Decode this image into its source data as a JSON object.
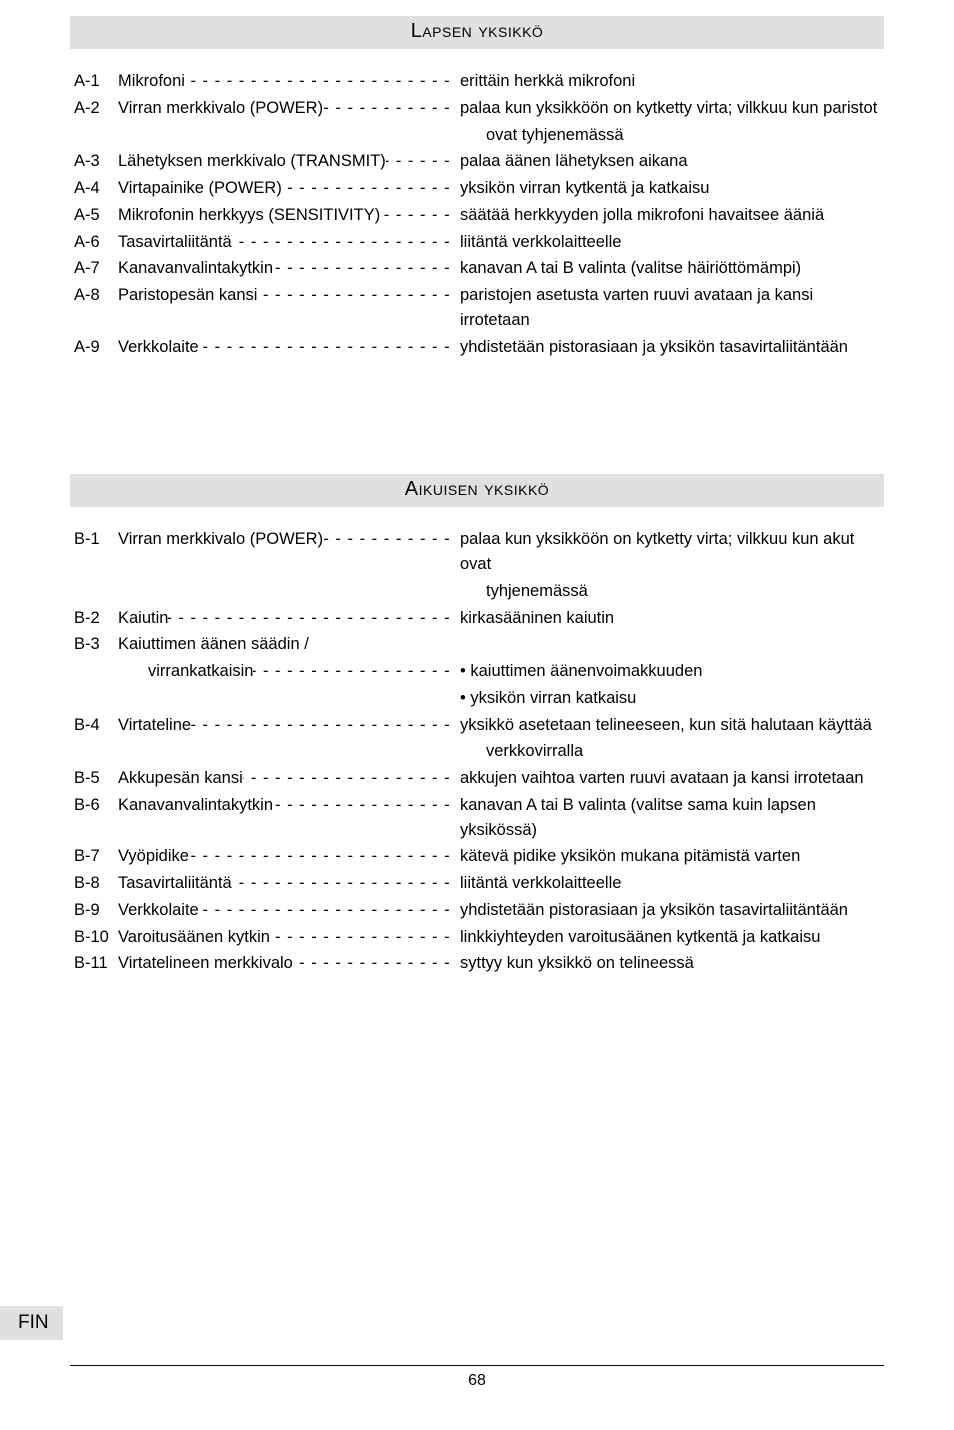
{
  "colors": {
    "page_bg": "#ffffff",
    "heading_bg": "#e0e0e0",
    "text": "#000000",
    "rule": "#000000"
  },
  "fonts": {
    "body_size_pt": 12,
    "heading_size_pt": 15
  },
  "leader_glyph": "- - - - - - - - - - - - - - - - - - - - - - - - - - - - - - - - - - - - - - - - - - - - - - - - - - - - - -",
  "section1": {
    "title": "Lapsen yksikkö",
    "rows": [
      {
        "tag": "A-1",
        "label": "Mikrofoni ",
        "desc": "erittäin herkkä mikrofoni"
      },
      {
        "tag": "A-2",
        "label": "Virran merkkivalo (POWER) ",
        "desc": "palaa kun yksikköön on kytketty virta; vilkkuu kun paristot",
        "cont": "ovat tyhjenemässä"
      },
      {
        "tag": "A-3",
        "label": "Lähetyksen merkkivalo (TRANSMIT) ",
        "desc": "palaa äänen lähetyksen aikana"
      },
      {
        "tag": "A-4",
        "label": "Virtapainike (POWER) ",
        "desc": "yksikön virran kytkentä ja katkaisu"
      },
      {
        "tag": "A-5",
        "label": "Mikrofonin herkkyys (SENSITIVITY) ",
        "desc": "säätää herkkyyden jolla mikrofoni havaitsee ääniä"
      },
      {
        "tag": "A-6",
        "label": "Tasavirtaliitäntä ",
        "desc": "liitäntä verkkolaitteelle"
      },
      {
        "tag": "A-7",
        "label": "Kanavanvalintakytkin ",
        "desc": "kanavan A tai B valinta (valitse häiriöttömämpi)"
      },
      {
        "tag": "A-8",
        "label": "Paristopesän kansi ",
        "desc": "paristojen asetusta varten ruuvi avataan ja kansi irrotetaan"
      },
      {
        "tag": "A-9",
        "label": "Verkkolaite ",
        "desc": "yhdistetään pistorasiaan ja yksikön tasavirtaliitäntään"
      }
    ]
  },
  "section2": {
    "title": "Aikuisen yksikkö",
    "rows": [
      {
        "tag": "B-1",
        "label": "Virran merkkivalo (POWER) ",
        "desc": "palaa kun yksikköön on kytketty virta; vilkkuu kun akut ovat",
        "cont": "tyhjenemässä"
      },
      {
        "tag": "B-2",
        "label": "Kaiutin ",
        "desc": "kirkasääninen kaiutin"
      },
      {
        "tag": "B-3",
        "label": "Kaiuttimen äänen säädin /",
        "no_leader": true
      },
      {
        "tag": "",
        "label_indent": true,
        "label": "virrankatkaisin ",
        "desc": "• kaiuttimen äänenvoimakkuuden"
      },
      {
        "tag": "",
        "label": "",
        "no_leader": true,
        "desc": "• yksikön virran katkaisu"
      },
      {
        "tag": "B-4",
        "label": "Virtateline ",
        "desc": "yksikkö asetetaan telineeseen, kun sitä halutaan käyttää",
        "cont": "verkkovirralla"
      },
      {
        "tag": "B-5",
        "label": "Akkupesän kansi ",
        "desc": "akkujen vaihtoa varten ruuvi avataan ja kansi irrotetaan"
      },
      {
        "tag": "B-6",
        "label": "Kanavanvalintakytkin ",
        "desc": "kanavan A tai B valinta (valitse sama kuin lapsen yksikössä)"
      },
      {
        "tag": "B-7",
        "label": "Vyöpidike ",
        "desc": "kätevä pidike yksikön mukana pitämistä varten"
      },
      {
        "tag": "B-8",
        "label": "Tasavirtaliitäntä ",
        "desc": "liitäntä verkkolaitteelle"
      },
      {
        "tag": "B-9",
        "label": "Verkkolaite ",
        "desc": "yhdistetään pistorasiaan ja yksikön tasavirtaliitäntään"
      },
      {
        "tag": "B-10",
        "label": "Varoitusäänen kytkin ",
        "desc": "linkkiyhteyden varoitusäänen kytkentä ja katkaisu"
      },
      {
        "tag": "B-11",
        "label": "Virtatelineen merkkivalo ",
        "desc": "syttyy kun yksikkö on telineessä"
      }
    ]
  },
  "lang_tag": "FIN",
  "page_number": "68"
}
